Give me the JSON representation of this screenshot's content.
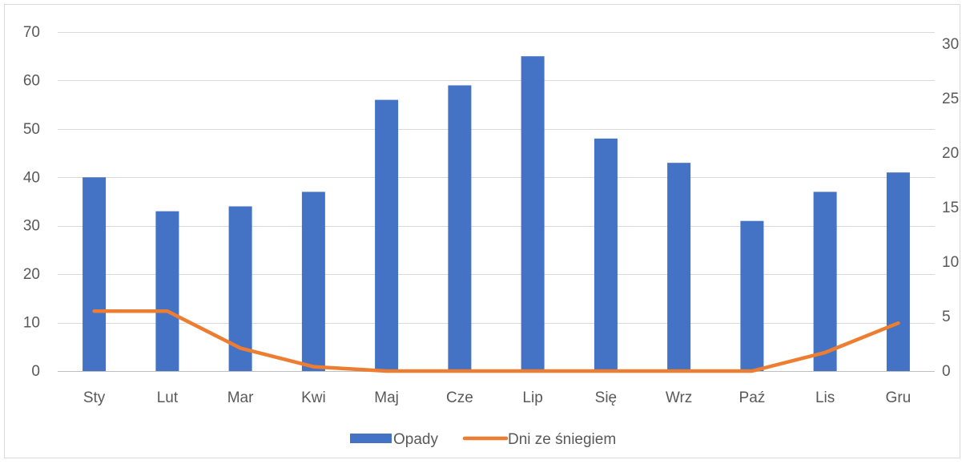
{
  "chart_data": {
    "type": "bar",
    "categories": [
      "Sty",
      "Lut",
      "Mar",
      "Kwi",
      "Maj",
      "Cze",
      "Lip",
      "Się",
      "Wrz",
      "Paź",
      "Lis",
      "Gru"
    ],
    "series": [
      {
        "name": "Opady",
        "type": "bar",
        "axis": "left",
        "color": "#4472c4",
        "values": [
          40,
          33,
          34,
          37,
          56,
          59,
          65,
          48,
          43,
          31,
          37,
          41
        ]
      },
      {
        "name": "Dni ze śniegiem",
        "type": "line",
        "axis": "right",
        "color": "#ed7d31",
        "values": [
          5.5,
          5.5,
          2.1,
          0.4,
          0,
          0,
          0,
          0,
          0,
          0,
          1.7,
          4.4
        ]
      }
    ],
    "title": "",
    "xlabel": "",
    "ylabel": "",
    "y2label": "",
    "ylim": [
      0,
      70
    ],
    "yticks": [
      0,
      10,
      20,
      30,
      40,
      50,
      60,
      70
    ],
    "y2lim": [
      0,
      31.1
    ],
    "y2ticks": [
      0,
      5,
      10,
      15,
      20,
      25,
      30
    ],
    "grid": true,
    "legend": "bottom"
  }
}
